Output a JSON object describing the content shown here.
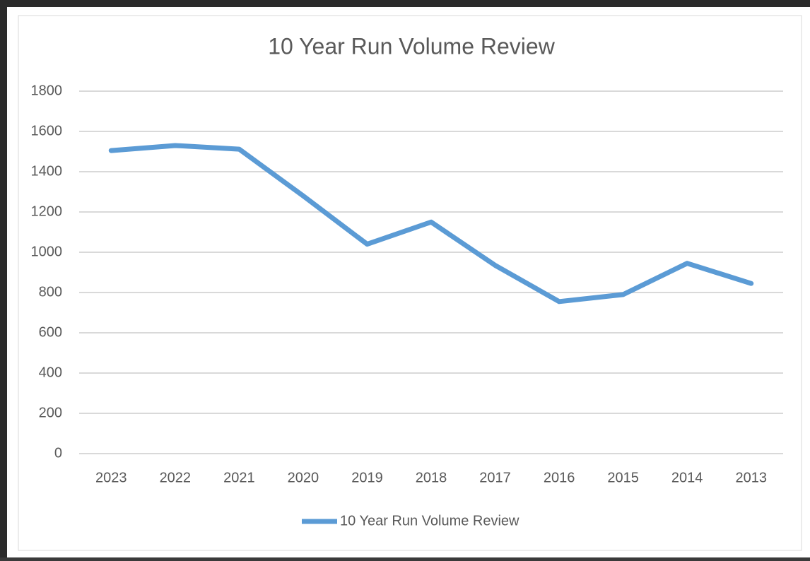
{
  "chart_data": {
    "type": "line",
    "title": "10 Year Run Volume Review",
    "categories": [
      "2023",
      "2022",
      "2021",
      "2020",
      "2019",
      "2018",
      "2017",
      "2016",
      "2015",
      "2014",
      "2013"
    ],
    "series": [
      {
        "name": "10 Year Run Volume Review",
        "color": "#5b9bd5",
        "values": [
          1505,
          1530,
          1512,
          1280,
          1040,
          1150,
          935,
          755,
          790,
          945,
          845
        ]
      }
    ],
    "ylim": [
      0,
      1800
    ],
    "yticks": [
      0,
      200,
      400,
      600,
      800,
      1000,
      1200,
      1400,
      1600,
      1800
    ],
    "grid": true,
    "legend": "bottom"
  }
}
